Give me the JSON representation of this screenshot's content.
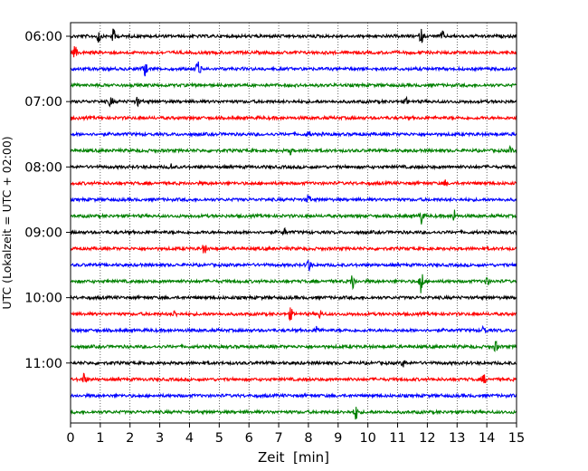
{
  "chart_data": {
    "type": "line",
    "title": "",
    "xlabel": "Zeit  [min]",
    "ylabel": "UTC (Lokalzeit = UTC + 02:00)",
    "xlim": [
      0,
      15
    ],
    "x_ticks": [
      0,
      1,
      2,
      3,
      4,
      5,
      6,
      7,
      8,
      9,
      10,
      11,
      12,
      13,
      14,
      15
    ],
    "y_tick_labels": [
      "06:00",
      "07:00",
      "08:00",
      "09:00",
      "10:00",
      "11:00"
    ],
    "trace_interval_min": 15,
    "start_time": "06:00",
    "vertical_grid": true,
    "trace_colors": [
      "#000000",
      "#ff0000",
      "#0000ff",
      "#008000"
    ],
    "traces": [
      {
        "start": "06:00",
        "events": [
          [
            0.95,
            0.45
          ],
          [
            1.45,
            0.5
          ],
          [
            11.8,
            0.45
          ],
          [
            12.5,
            0.3
          ]
        ]
      },
      {
        "start": "06:15",
        "events": [
          [
            0.15,
            0.4
          ]
        ]
      },
      {
        "start": "06:30",
        "events": [
          [
            2.5,
            0.55
          ],
          [
            4.3,
            0.9
          ]
        ]
      },
      {
        "start": "06:45",
        "events": []
      },
      {
        "start": "07:00",
        "events": [
          [
            1.35,
            0.35
          ],
          [
            2.25,
            0.3
          ],
          [
            11.3,
            0.2
          ]
        ]
      },
      {
        "start": "07:15",
        "events": []
      },
      {
        "start": "07:30",
        "events": [
          [
            8.0,
            0.2
          ]
        ]
      },
      {
        "start": "07:45",
        "events": [
          [
            7.4,
            0.2
          ],
          [
            14.8,
            0.2
          ]
        ]
      },
      {
        "start": "08:00",
        "events": [
          [
            3.4,
            0.2
          ]
        ]
      },
      {
        "start": "08:15",
        "events": [
          [
            12.6,
            0.2
          ]
        ]
      },
      {
        "start": "08:30",
        "events": [
          [
            8.0,
            0.3
          ]
        ]
      },
      {
        "start": "08:45",
        "events": [
          [
            11.8,
            0.55
          ],
          [
            12.9,
            0.4
          ]
        ]
      },
      {
        "start": "09:00",
        "events": [
          [
            7.2,
            0.2
          ]
        ]
      },
      {
        "start": "09:15",
        "events": [
          [
            4.5,
            0.35
          ]
        ]
      },
      {
        "start": "09:30",
        "events": [
          [
            8.0,
            0.5
          ]
        ]
      },
      {
        "start": "09:45",
        "events": [
          [
            9.5,
            0.6
          ],
          [
            11.8,
            0.9
          ],
          [
            14.0,
            0.3
          ]
        ]
      },
      {
        "start": "10:00",
        "events": []
      },
      {
        "start": "10:15",
        "events": [
          [
            7.4,
            0.4
          ],
          [
            8.4,
            0.25
          ],
          [
            3.5,
            0.2
          ]
        ]
      },
      {
        "start": "10:30",
        "events": [
          [
            8.3,
            0.3
          ],
          [
            13.9,
            0.3
          ]
        ]
      },
      {
        "start": "10:45",
        "events": [
          [
            14.3,
            0.35
          ]
        ]
      },
      {
        "start": "11:00",
        "events": [
          [
            11.2,
            0.25
          ]
        ]
      },
      {
        "start": "11:15",
        "events": [
          [
            0.45,
            0.4
          ],
          [
            13.9,
            0.3
          ]
        ]
      },
      {
        "start": "11:30",
        "events": []
      },
      {
        "start": "11:45",
        "events": [
          [
            9.6,
            0.5
          ]
        ]
      }
    ]
  }
}
